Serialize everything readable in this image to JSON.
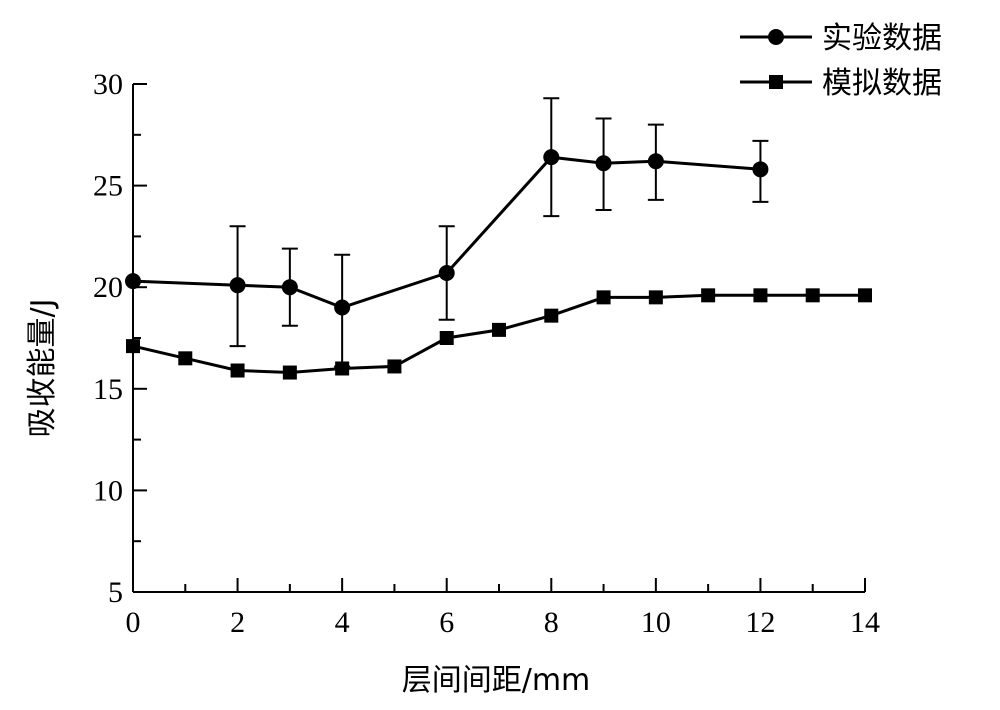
{
  "chart_data": {
    "type": "line",
    "xlabel": "层间间距/mm",
    "ylabel": "吸收能量/J",
    "xlim": [
      0,
      14
    ],
    "ylim": [
      5,
      30
    ],
    "xticks": [
      0,
      2,
      4,
      6,
      8,
      10,
      12,
      14
    ],
    "yticks": [
      5,
      10,
      15,
      20,
      25,
      30
    ],
    "grid": false,
    "legend_position": "top-right",
    "series": [
      {
        "name": "实验数据",
        "marker": "circle",
        "x": [
          0,
          2,
          3,
          4,
          6,
          8,
          9,
          10,
          12
        ],
        "y": [
          20.3,
          20.1,
          20.0,
          19.0,
          20.7,
          26.4,
          26.1,
          26.2,
          25.8
        ],
        "err_low": [
          0,
          3.0,
          1.9,
          2.9,
          2.3,
          2.9,
          2.3,
          1.9,
          1.6
        ],
        "err_high": [
          0,
          2.9,
          1.9,
          2.6,
          2.3,
          2.9,
          2.2,
          1.8,
          1.4
        ]
      },
      {
        "name": "模拟数据",
        "marker": "square",
        "x": [
          0,
          1,
          2,
          3,
          4,
          5,
          6,
          7,
          8,
          9,
          10,
          11,
          12,
          13,
          14
        ],
        "y": [
          17.1,
          16.5,
          15.9,
          15.8,
          16.0,
          16.1,
          17.5,
          17.9,
          18.6,
          19.5,
          19.5,
          19.6,
          19.6,
          19.6,
          19.6
        ]
      }
    ]
  }
}
